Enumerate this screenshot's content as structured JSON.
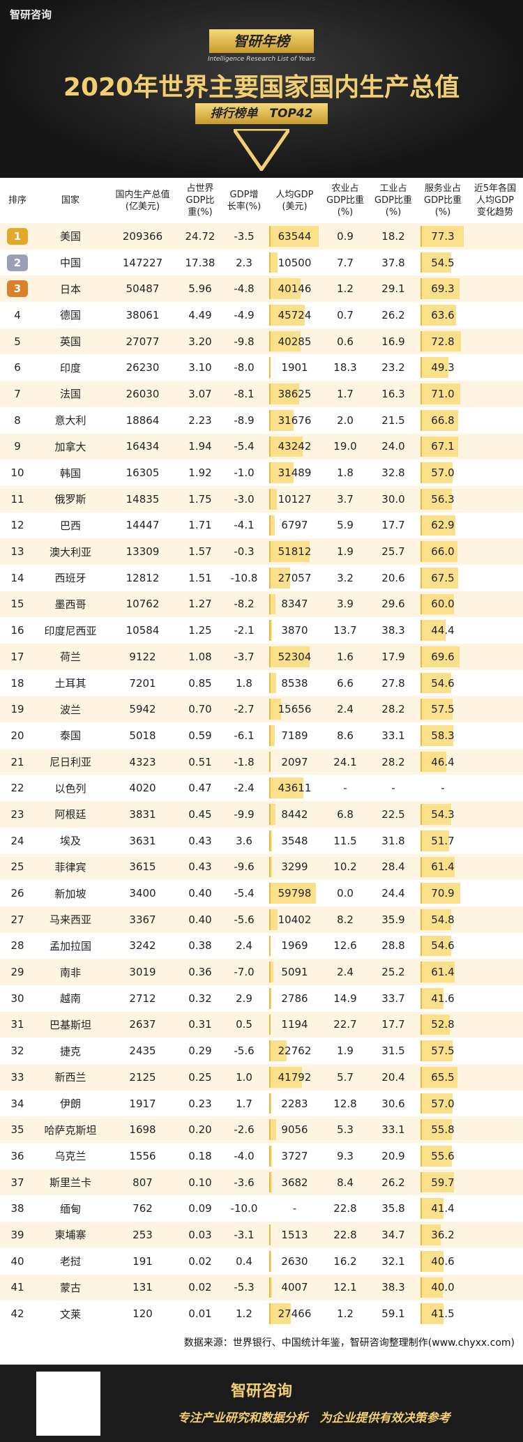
{
  "header": {
    "logo": "智研咨询",
    "badge": "智研年榜",
    "badge_en": "Intelligence Research List of Years",
    "title": "2020年世界主要国家国内生产总值",
    "subtitle": "排行榜单　TOP42"
  },
  "table": {
    "columns": [
      "排序",
      "国家",
      "国内生产总值\n(亿美元)",
      "占世界\nGDP比\n重(%)",
      "GDP增\n长率(%)",
      "人均GDP\n(美元)",
      "农业占\nGDP比重\n(%)",
      "工业占\nGDP比重\n(%)",
      "服务业占\nGDP比重\n(%)",
      "近5年各国\n人均GDP\n变化趋势"
    ],
    "rows": [
      [
        "1",
        "美国",
        "209366",
        "24.72",
        "-3.5",
        "63544",
        "0.9",
        "18.2",
        "77.3"
      ],
      [
        "2",
        "中国",
        "147227",
        "17.38",
        "2.3",
        "10500",
        "7.7",
        "37.8",
        "54.5"
      ],
      [
        "3",
        "日本",
        "50487",
        "5.96",
        "-4.8",
        "40146",
        "1.2",
        "29.1",
        "69.3"
      ],
      [
        "4",
        "德国",
        "38061",
        "4.49",
        "-4.9",
        "45724",
        "0.7",
        "26.2",
        "63.6"
      ],
      [
        "5",
        "英国",
        "27077",
        "3.20",
        "-9.8",
        "40285",
        "0.6",
        "16.9",
        "72.8"
      ],
      [
        "6",
        "印度",
        "26230",
        "3.10",
        "-8.0",
        "1901",
        "18.3",
        "23.2",
        "49.3"
      ],
      [
        "7",
        "法国",
        "26030",
        "3.07",
        "-8.1",
        "38625",
        "1.7",
        "16.3",
        "71.0"
      ],
      [
        "8",
        "意大利",
        "18864",
        "2.23",
        "-8.9",
        "31676",
        "2.0",
        "21.5",
        "66.8"
      ],
      [
        "9",
        "加拿大",
        "16434",
        "1.94",
        "-5.4",
        "43242",
        "19.0",
        "24.0",
        "67.1"
      ],
      [
        "10",
        "韩国",
        "16305",
        "1.92",
        "-1.0",
        "31489",
        "1.8",
        "32.8",
        "57.0"
      ],
      [
        "11",
        "俄罗斯",
        "14835",
        "1.75",
        "-3.0",
        "10127",
        "3.7",
        "30.0",
        "56.3"
      ],
      [
        "12",
        "巴西",
        "14447",
        "1.71",
        "-4.1",
        "6797",
        "5.9",
        "17.7",
        "62.9"
      ],
      [
        "13",
        "澳大利亚",
        "13309",
        "1.57",
        "-0.3",
        "51812",
        "1.9",
        "25.7",
        "66.0"
      ],
      [
        "14",
        "西班牙",
        "12812",
        "1.51",
        "-10.8",
        "27057",
        "3.2",
        "20.6",
        "67.5"
      ],
      [
        "15",
        "墨西哥",
        "10762",
        "1.27",
        "-8.2",
        "8347",
        "3.9",
        "29.6",
        "60.0"
      ],
      [
        "16",
        "印度尼西亚",
        "10584",
        "1.25",
        "-2.1",
        "3870",
        "13.7",
        "38.3",
        "44.4"
      ],
      [
        "17",
        "荷兰",
        "9122",
        "1.08",
        "-3.7",
        "52304",
        "1.6",
        "17.9",
        "69.6"
      ],
      [
        "18",
        "土耳其",
        "7201",
        "0.85",
        "1.8",
        "8538",
        "6.6",
        "27.8",
        "54.6"
      ],
      [
        "19",
        "波兰",
        "5942",
        "0.70",
        "-2.7",
        "15656",
        "2.4",
        "28.2",
        "57.5"
      ],
      [
        "20",
        "泰国",
        "5018",
        "0.59",
        "-6.1",
        "7189",
        "8.6",
        "33.1",
        "58.3"
      ],
      [
        "21",
        "尼日利亚",
        "4323",
        "0.51",
        "-1.8",
        "2097",
        "24.1",
        "28.2",
        "46.4"
      ],
      [
        "22",
        "以色列",
        "4020",
        "0.47",
        "-2.4",
        "43611",
        "-",
        "-",
        "-"
      ],
      [
        "23",
        "阿根廷",
        "3831",
        "0.45",
        "-9.9",
        "8442",
        "6.8",
        "22.5",
        "54.3"
      ],
      [
        "24",
        "埃及",
        "3631",
        "0.43",
        "3.6",
        "3548",
        "11.5",
        "31.8",
        "51.7"
      ],
      [
        "25",
        "菲律宾",
        "3615",
        "0.43",
        "-9.6",
        "3299",
        "10.2",
        "28.4",
        "61.4"
      ],
      [
        "26",
        "新加坡",
        "3400",
        "0.40",
        "-5.4",
        "59798",
        "0.0",
        "24.4",
        "70.9"
      ],
      [
        "27",
        "马来西亚",
        "3367",
        "0.40",
        "-5.6",
        "10402",
        "8.2",
        "35.9",
        "54.8"
      ],
      [
        "28",
        "孟加拉国",
        "3242",
        "0.38",
        "2.4",
        "1969",
        "12.6",
        "28.8",
        "54.6"
      ],
      [
        "29",
        "南非",
        "3019",
        "0.36",
        "-7.0",
        "5091",
        "2.4",
        "25.2",
        "61.4"
      ],
      [
        "30",
        "越南",
        "2712",
        "0.32",
        "2.9",
        "2786",
        "14.9",
        "33.7",
        "41.6"
      ],
      [
        "31",
        "巴基斯坦",
        "2637",
        "0.31",
        "0.5",
        "1194",
        "22.7",
        "17.7",
        "52.8"
      ],
      [
        "32",
        "捷克",
        "2435",
        "0.29",
        "-5.6",
        "22762",
        "1.9",
        "31.5",
        "57.5"
      ],
      [
        "33",
        "新西兰",
        "2125",
        "0.25",
        "1.0",
        "41792",
        "5.7",
        "20.4",
        "65.5"
      ],
      [
        "34",
        "伊朗",
        "1917",
        "0.23",
        "1.7",
        "2283",
        "12.8",
        "30.6",
        "57.0"
      ],
      [
        "35",
        "哈萨克斯坦",
        "1698",
        "0.20",
        "-2.6",
        "9056",
        "5.3",
        "33.1",
        "55.8"
      ],
      [
        "36",
        "乌克兰",
        "1556",
        "0.18",
        "-4.0",
        "3727",
        "9.3",
        "20.9",
        "55.6"
      ],
      [
        "37",
        "斯里兰卡",
        "807",
        "0.10",
        "-3.6",
        "3682",
        "8.4",
        "26.2",
        "59.7"
      ],
      [
        "38",
        "缅甸",
        "762",
        "0.09",
        "-10.0",
        "-",
        "22.8",
        "35.8",
        "41.4"
      ],
      [
        "39",
        "柬埔寨",
        "253",
        "0.03",
        "-3.1",
        "1513",
        "22.8",
        "34.7",
        "36.2"
      ],
      [
        "40",
        "老挝",
        "191",
        "0.02",
        "0.4",
        "2630",
        "16.2",
        "32.1",
        "40.6"
      ],
      [
        "41",
        "蒙古",
        "131",
        "0.02",
        "-5.3",
        "4007",
        "12.1",
        "38.3",
        "40.0"
      ],
      [
        "42",
        "文莱",
        "120",
        "0.01",
        "1.2",
        "27466",
        "1.2",
        "59.1",
        "41.5"
      ]
    ]
  },
  "source": "数据来源：世界银行、中国统计年鉴，智研咨询整理制作(www.chyxx.com)",
  "footer": {
    "brand": "智研咨询",
    "slogan": "专注产业研究和数据分析　为企业提供有效决策参考"
  }
}
